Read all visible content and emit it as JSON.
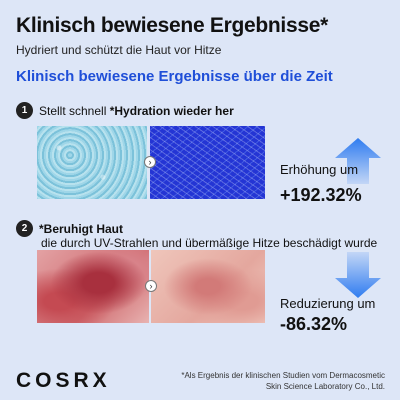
{
  "header": {
    "title": "Klinisch bewiesene Ergebnisse*",
    "subtitle": "Hydriert und schützt die Haut vor Hitze"
  },
  "section": {
    "heading": "Klinisch bewiesene Ergebnisse über die Zeit"
  },
  "steps": [
    {
      "number": "1",
      "text_prefix": "Stellt schnell ",
      "text_bold": "*Hydration wieder her",
      "text_sub": "",
      "result_label": "Erhöhung um",
      "result_value": "+192.32%",
      "arrow_direction": "up",
      "arrow_color": "#2f7cf0"
    },
    {
      "number": "2",
      "text_prefix": "",
      "text_bold": "*Beruhigt Haut",
      "text_sub": "die durch UV-Strahlen und übermäßige Hitze beschädigt wurde",
      "result_label": "Reduzierung um",
      "result_value": "-86.32%",
      "arrow_direction": "down",
      "arrow_color": "#2f7cf0"
    }
  ],
  "compare_arrow_glyph": "›",
  "footer": {
    "logo": "COSRX",
    "footnote_line1": "*Als Ergebnis der klinischen Studien vom Dermacosmetic",
    "footnote_line2": "Skin Science Laboratory Co., Ltd."
  },
  "colors": {
    "background": "#dde6f7",
    "accent": "#1f4fd8"
  }
}
